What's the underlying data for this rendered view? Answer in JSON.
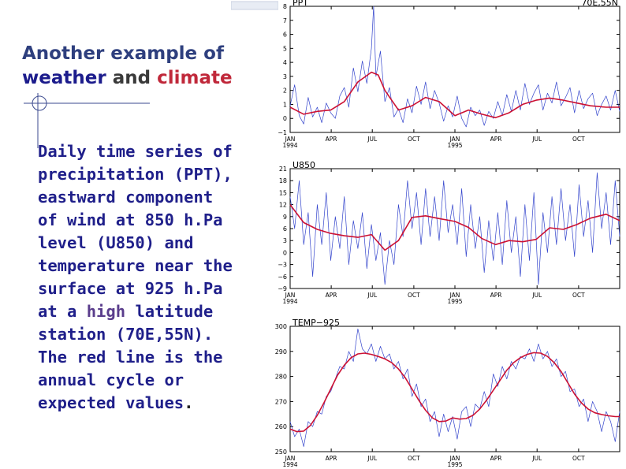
{
  "slide": {
    "title_part1": "Another example of",
    "title_part2": "weather",
    "title_part3": "and",
    "title_part4": "climate",
    "body_part1": "Daily time series of precipitation (PPT), eastward component of wind at 850 h.Pa level (U850) and temperature near the surface at 925 h.Pa  at a",
    "body_part2": "high",
    "body_part3": "latitude station (70E,55N). The red line is the annual cycle or expected values",
    "body_part4": "."
  },
  "colors": {
    "daily_series": "#3344cc",
    "annual_cycle": "#cc1133",
    "title_navy": "#1c1c8c",
    "title_red": "#c0283a"
  },
  "chart_data": [
    {
      "type": "line",
      "title": "PPT",
      "location": "70E,55N",
      "xlabel": "",
      "ylabel": "",
      "ylim": [
        -1,
        8
      ],
      "yticks": [
        -1,
        0,
        1,
        2,
        3,
        4,
        5,
        6,
        7,
        8
      ],
      "ytick_labels": [
        "−1",
        "0",
        "1",
        "2",
        "3",
        "4",
        "5",
        "6",
        "7",
        "8"
      ],
      "xlim": [
        0,
        730
      ],
      "xticks": [
        0,
        91,
        182,
        274,
        365,
        456,
        547,
        639
      ],
      "xtick_labels": [
        "JAN|1994",
        "APR",
        "JUL",
        "OCT",
        "JAN|1995",
        "APR",
        "JUL",
        "OCT"
      ],
      "series": [
        {
          "name": "annual cycle",
          "x": [
            0,
            30,
            60,
            90,
            120,
            150,
            180,
            195,
            210,
            240,
            270,
            300,
            330,
            365,
            395,
            425,
            455,
            485,
            515,
            545,
            575,
            605,
            635,
            665,
            700,
            730
          ],
          "values": [
            0.8,
            0.3,
            0.5,
            0.6,
            1.2,
            2.6,
            3.3,
            3.1,
            2.0,
            0.6,
            0.9,
            1.5,
            1.2,
            0.2,
            0.6,
            0.3,
            0.05,
            0.4,
            1.0,
            1.3,
            1.45,
            1.3,
            1.1,
            0.9,
            0.8,
            0.8
          ]
        },
        {
          "name": "daily",
          "x": [
            0,
            10,
            20,
            30,
            40,
            50,
            60,
            70,
            80,
            90,
            100,
            110,
            120,
            130,
            140,
            150,
            160,
            170,
            180,
            185,
            190,
            200,
            210,
            220,
            230,
            240,
            250,
            260,
            270,
            280,
            290,
            300,
            310,
            320,
            330,
            340,
            350,
            360,
            370,
            380,
            390,
            400,
            410,
            420,
            430,
            440,
            450,
            460,
            470,
            480,
            490,
            500,
            510,
            520,
            530,
            540,
            550,
            560,
            570,
            580,
            590,
            600,
            610,
            620,
            630,
            640,
            650,
            660,
            670,
            680,
            690,
            700,
            710,
            720,
            730
          ],
          "values": [
            0.9,
            2.4,
            0.2,
            -0.4,
            1.5,
            0.1,
            0.8,
            -0.3,
            1.1,
            0.4,
            0.0,
            1.6,
            2.2,
            0.8,
            3.6,
            1.9,
            4.1,
            2.5,
            5.0,
            8.0,
            3.0,
            4.8,
            1.2,
            2.2,
            0.1,
            0.7,
            -0.3,
            1.4,
            0.4,
            2.3,
            1.0,
            2.6,
            0.7,
            2.0,
            1.1,
            -0.2,
            0.9,
            0.1,
            1.6,
            0.0,
            -0.6,
            0.8,
            0.2,
            0.6,
            -0.5,
            0.5,
            0.0,
            1.2,
            0.2,
            1.7,
            0.5,
            2.0,
            0.6,
            2.5,
            1.0,
            1.8,
            2.4,
            0.6,
            1.8,
            1.1,
            2.6,
            0.9,
            1.5,
            2.2,
            0.4,
            2.0,
            0.7,
            1.4,
            1.8,
            0.2,
            1.0,
            1.6,
            0.6,
            2.0,
            0.5
          ]
        }
      ]
    },
    {
      "type": "line",
      "title": "U850",
      "xlabel": "",
      "ylabel": "",
      "ylim": [
        -9,
        21
      ],
      "yticks": [
        -9,
        -6,
        -3,
        0,
        3,
        6,
        9,
        12,
        15,
        18,
        21
      ],
      "ytick_labels": [
        "−9",
        "−6",
        "−3",
        "0",
        "3",
        "6",
        "9",
        "12",
        "15",
        "18",
        "21"
      ],
      "xlim": [
        0,
        730
      ],
      "xticks": [
        0,
        91,
        182,
        274,
        365,
        456,
        547,
        639
      ],
      "xtick_labels": [
        "JAN|1994",
        "APR",
        "JUL",
        "OCT",
        "JAN|1995",
        "APR",
        "JUL",
        "OCT"
      ],
      "series": [
        {
          "name": "annual cycle",
          "x": [
            0,
            30,
            60,
            90,
            120,
            150,
            180,
            210,
            240,
            270,
            300,
            330,
            365,
            395,
            425,
            455,
            485,
            515,
            545,
            575,
            605,
            635,
            665,
            700,
            730
          ],
          "values": [
            12.0,
            7.5,
            5.8,
            4.8,
            4.2,
            3.8,
            4.5,
            0.6,
            3.0,
            8.8,
            9.2,
            8.5,
            7.8,
            6.3,
            3.5,
            2.0,
            3.0,
            2.7,
            3.3,
            6.2,
            5.8,
            7.0,
            8.6,
            9.6,
            8.0
          ]
        },
        {
          "name": "daily",
          "x": [
            0,
            10,
            20,
            30,
            40,
            50,
            60,
            70,
            80,
            90,
            100,
            110,
            120,
            130,
            140,
            150,
            160,
            170,
            180,
            190,
            200,
            210,
            220,
            230,
            240,
            250,
            260,
            270,
            280,
            290,
            300,
            310,
            320,
            330,
            340,
            350,
            360,
            370,
            380,
            390,
            400,
            410,
            420,
            430,
            440,
            450,
            460,
            470,
            480,
            490,
            500,
            510,
            520,
            530,
            540,
            550,
            560,
            570,
            580,
            590,
            600,
            610,
            620,
            630,
            640,
            650,
            660,
            670,
            680,
            690,
            700,
            710,
            720,
            730
          ],
          "values": [
            14.0,
            6.0,
            18.0,
            2.0,
            10.0,
            -6.0,
            12.0,
            2.0,
            15.0,
            -2.0,
            9.0,
            1.0,
            14.0,
            -3.0,
            8.0,
            1.0,
            10.0,
            -4.0,
            7.0,
            -2.0,
            5.0,
            -8.0,
            3.0,
            -3.0,
            12.0,
            4.0,
            18.0,
            6.0,
            15.0,
            2.0,
            16.0,
            4.0,
            14.0,
            3.0,
            18.0,
            5.0,
            12.0,
            2.0,
            16.0,
            -1.0,
            12.0,
            1.0,
            9.0,
            -5.0,
            8.0,
            -2.0,
            10.0,
            -3.0,
            13.0,
            0.0,
            9.0,
            -6.0,
            12.0,
            -2.0,
            15.0,
            -8.0,
            10.0,
            0.0,
            14.0,
            2.0,
            16.0,
            3.0,
            12.0,
            -1.0,
            17.0,
            4.0,
            13.0,
            0.0,
            20.0,
            6.0,
            15.0,
            2.0,
            18.0,
            4.0
          ]
        }
      ]
    },
    {
      "type": "line",
      "title": "TEMP−925",
      "xlabel": "",
      "ylabel": "",
      "ylim": [
        250,
        300
      ],
      "yticks": [
        250,
        260,
        270,
        280,
        290,
        300
      ],
      "ytick_labels": [
        "250",
        "260",
        "270",
        "280",
        "290",
        "300"
      ],
      "xlim": [
        0,
        730
      ],
      "xticks": [
        0,
        91,
        182,
        274,
        365,
        456,
        547,
        639
      ],
      "xtick_labels": [
        "JAN|1994",
        "APR",
        "JUL",
        "OCT",
        "JAN|1995",
        "APR",
        "JUL",
        "OCT"
      ],
      "series": [
        {
          "name": "annual cycle",
          "x": [
            0,
            15,
            30,
            45,
            60,
            75,
            90,
            105,
            120,
            135,
            150,
            165,
            180,
            195,
            210,
            225,
            240,
            255,
            270,
            285,
            300,
            315,
            330,
            345,
            360,
            375,
            390,
            405,
            420,
            435,
            450,
            465,
            480,
            495,
            510,
            525,
            540,
            555,
            570,
            585,
            600,
            615,
            630,
            645,
            660,
            675,
            690,
            705,
            720,
            730
          ],
          "values": [
            259.0,
            258.0,
            258.2,
            260.5,
            264.5,
            269.5,
            275.0,
            280.5,
            284.5,
            287.5,
            289.0,
            289.3,
            288.8,
            288.0,
            287.0,
            285.5,
            283.0,
            279.5,
            275.0,
            270.5,
            266.5,
            263.5,
            262.0,
            262.2,
            263.5,
            263.0,
            263.2,
            264.5,
            267.0,
            270.5,
            274.5,
            278.5,
            282.5,
            285.5,
            287.5,
            288.8,
            289.5,
            289.3,
            288.0,
            285.5,
            282.0,
            277.5,
            273.0,
            269.5,
            267.0,
            265.5,
            264.8,
            264.3,
            264.0,
            264.0
          ]
        },
        {
          "name": "daily",
          "x": [
            0,
            10,
            20,
            30,
            40,
            50,
            60,
            70,
            80,
            90,
            100,
            110,
            120,
            130,
            140,
            150,
            160,
            170,
            180,
            190,
            200,
            210,
            220,
            230,
            240,
            250,
            260,
            270,
            280,
            290,
            300,
            310,
            320,
            330,
            340,
            350,
            360,
            370,
            380,
            390,
            400,
            410,
            420,
            430,
            440,
            450,
            460,
            470,
            480,
            490,
            500,
            510,
            520,
            530,
            540,
            550,
            560,
            570,
            580,
            590,
            600,
            610,
            620,
            630,
            640,
            650,
            660,
            670,
            680,
            690,
            700,
            710,
            720,
            730
          ],
          "values": [
            262.0,
            256.0,
            259.0,
            252.0,
            262.0,
            260.0,
            266.0,
            265.0,
            272.0,
            274.0,
            279.0,
            284.0,
            283.0,
            290.0,
            286.0,
            299.0,
            291.0,
            289.0,
            293.0,
            286.0,
            292.0,
            287.0,
            289.0,
            283.0,
            286.0,
            279.0,
            283.0,
            272.0,
            277.0,
            268.0,
            271.0,
            262.0,
            266.0,
            256.0,
            265.0,
            258.0,
            264.0,
            255.0,
            266.0,
            268.0,
            260.0,
            269.0,
            267.0,
            274.0,
            268.0,
            281.0,
            276.0,
            284.0,
            279.0,
            286.0,
            283.0,
            288.0,
            287.0,
            291.0,
            286.0,
            293.0,
            287.0,
            290.0,
            284.0,
            287.0,
            280.0,
            282.0,
            274.0,
            275.0,
            268.0,
            271.0,
            262.0,
            270.0,
            266.0,
            258.0,
            266.0,
            262.0,
            254.0,
            266.0
          ]
        }
      ]
    }
  ]
}
